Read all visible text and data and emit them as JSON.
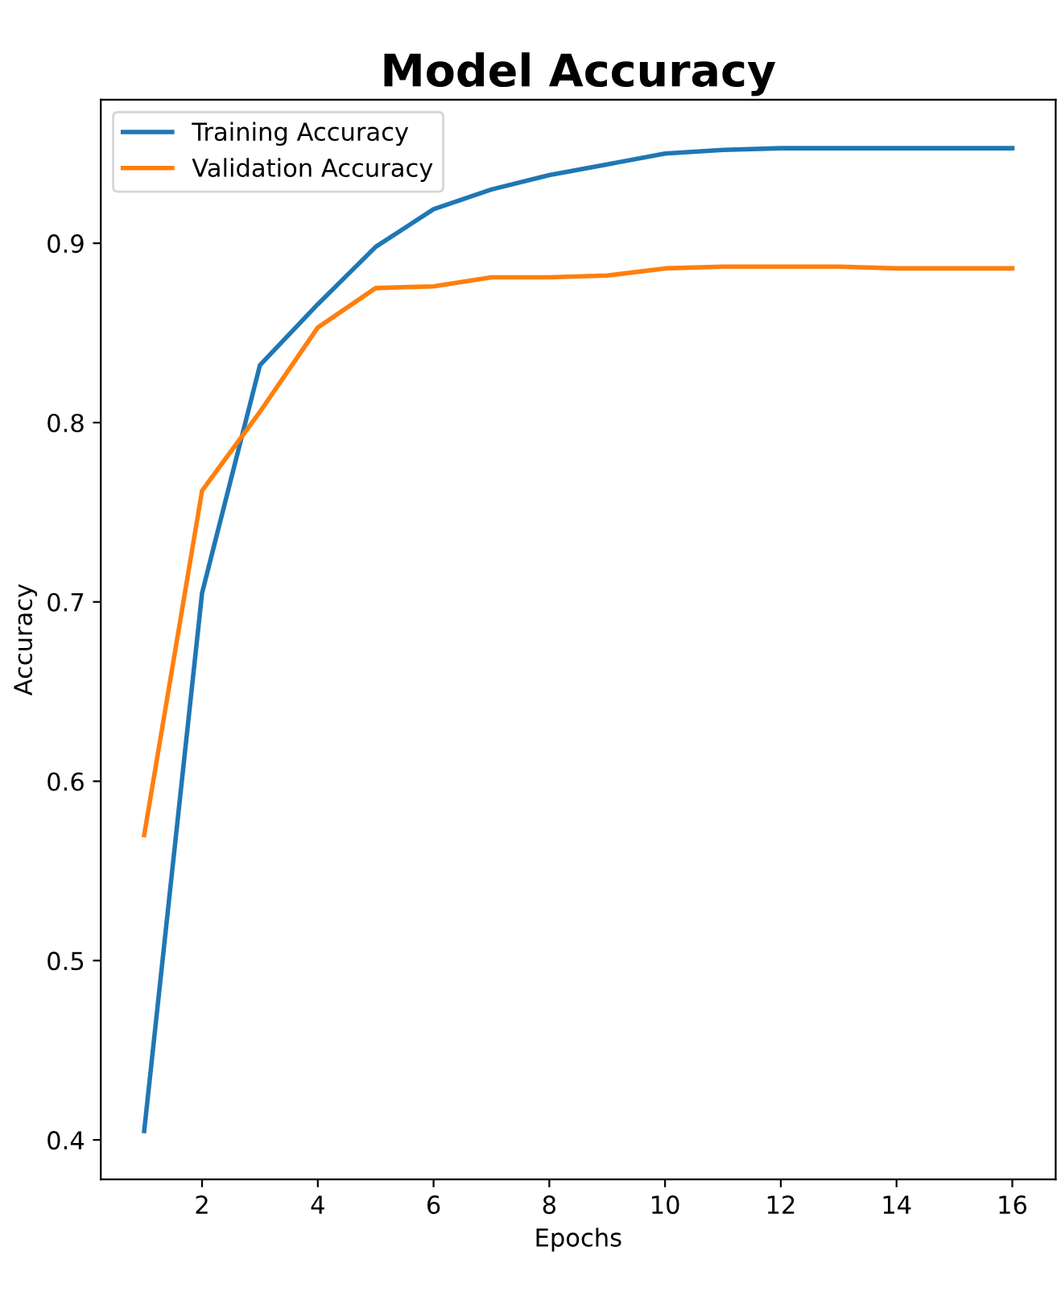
{
  "chart_data": {
    "type": "line",
    "title": "Model Accuracy",
    "xlabel": "Epochs",
    "ylabel": "Accuracy",
    "x": [
      1,
      2,
      3,
      4,
      5,
      6,
      7,
      8,
      9,
      10,
      11,
      12,
      13,
      14,
      15,
      16
    ],
    "series": [
      {
        "name": "Training Accuracy",
        "color": "#1f77b4",
        "values": [
          0.405,
          0.705,
          0.832,
          0.866,
          0.898,
          0.919,
          0.93,
          0.938,
          0.944,
          0.95,
          0.952,
          0.953,
          0.953,
          0.953,
          0.953,
          0.953
        ]
      },
      {
        "name": "Validation Accuracy",
        "color": "#ff7f0e",
        "values": [
          0.57,
          0.762,
          0.806,
          0.853,
          0.875,
          0.876,
          0.881,
          0.881,
          0.882,
          0.886,
          0.887,
          0.887,
          0.887,
          0.886,
          0.886,
          0.886
        ]
      }
    ],
    "xlim": [
      0.25,
      16.75
    ],
    "ylim": [
      0.378,
      0.98
    ],
    "xticks": [
      2,
      4,
      6,
      8,
      10,
      12,
      14,
      16
    ],
    "yticks": [
      0.4,
      0.5,
      0.6,
      0.7,
      0.8,
      0.9
    ],
    "legend": "top left",
    "grid": false,
    "marker": "none",
    "line_style": "solid"
  }
}
